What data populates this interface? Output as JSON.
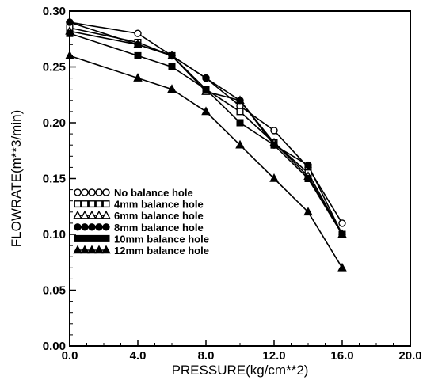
{
  "chart_data": {
    "type": "line",
    "title": "",
    "xlabel": "PRESSURE(kg/cm**2)",
    "ylabel": "FLOWRATE(m**3/min)",
    "xlim": [
      0,
      20
    ],
    "ylim": [
      0,
      0.3
    ],
    "x_ticks": [
      "0.0",
      "4.0",
      "8.0",
      "12.0",
      "16.0",
      "20.0"
    ],
    "y_ticks": [
      "0.00",
      "0.05",
      "0.10",
      "0.15",
      "0.20",
      "0.25",
      "0.30"
    ],
    "grid": false,
    "legend_position": "lower-left",
    "series": [
      {
        "name": "No balance hole",
        "marker": "circle-open",
        "x": [
          0,
          4,
          6,
          8,
          10,
          12,
          14,
          16
        ],
        "y": [
          0.29,
          0.28,
          0.26,
          0.24,
          0.215,
          0.193,
          0.16,
          0.11
        ]
      },
      {
        "name": "4mm balance hole",
        "marker": "square-open",
        "x": [
          0,
          4,
          6,
          8,
          10,
          12,
          14,
          16
        ],
        "y": [
          0.285,
          0.272,
          0.26,
          0.23,
          0.21,
          0.182,
          0.155,
          0.1
        ]
      },
      {
        "name": "6mm balance hole",
        "marker": "triangle-open",
        "x": [
          0,
          4,
          6,
          8,
          10,
          12,
          14,
          16
        ],
        "y": [
          0.282,
          0.27,
          0.26,
          0.228,
          0.22,
          0.182,
          0.152,
          0.1
        ]
      },
      {
        "name": "8mm balance hole",
        "marker": "circle-filled",
        "x": [
          0,
          4,
          6,
          8,
          10,
          12,
          14,
          16
        ],
        "y": [
          0.29,
          0.27,
          0.26,
          0.24,
          0.22,
          0.18,
          0.162,
          0.1
        ]
      },
      {
        "name": "10mm balance hole",
        "marker": "square-filled",
        "x": [
          0,
          4,
          6,
          8,
          10,
          12,
          14,
          16
        ],
        "y": [
          0.28,
          0.26,
          0.25,
          0.23,
          0.2,
          0.18,
          0.15,
          0.1
        ]
      },
      {
        "name": "12mm balance hole",
        "marker": "triangle-filled",
        "x": [
          0,
          4,
          6,
          8,
          10,
          12,
          14,
          16
        ],
        "y": [
          0.26,
          0.24,
          0.23,
          0.21,
          0.18,
          0.15,
          0.12,
          0.07
        ]
      }
    ]
  }
}
